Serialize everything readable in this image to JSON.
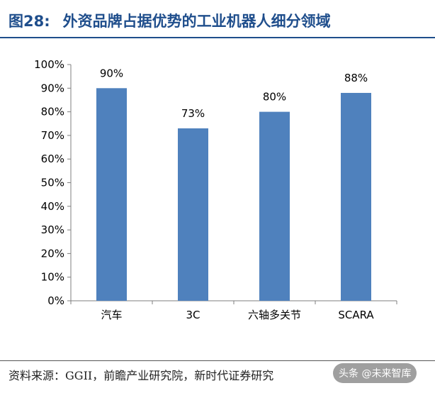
{
  "title": {
    "number": "图28:",
    "text": "外资品牌占据优势的工业机器人细分领域"
  },
  "source": "资料来源：GGII，前瞻产业研究院，新时代证券研究",
  "watermark": "头条 @未来智库",
  "chart_data": {
    "type": "bar",
    "categories": [
      "汽车",
      "3C",
      "六轴多关节",
      "SCARA"
    ],
    "values": [
      90,
      73,
      80,
      88
    ],
    "data_labels": [
      "90%",
      "73%",
      "80%",
      "88%"
    ],
    "ylim": [
      0,
      100
    ],
    "yticks": [
      0,
      10,
      20,
      30,
      40,
      50,
      60,
      70,
      80,
      90,
      100
    ],
    "ytick_labels": [
      "0%",
      "10%",
      "20%",
      "30%",
      "40%",
      "50%",
      "60%",
      "70%",
      "80%",
      "90%",
      "100%"
    ],
    "title": "",
    "xlabel": "",
    "ylabel": "",
    "grid": false,
    "bar_color": "#4f81bd"
  }
}
